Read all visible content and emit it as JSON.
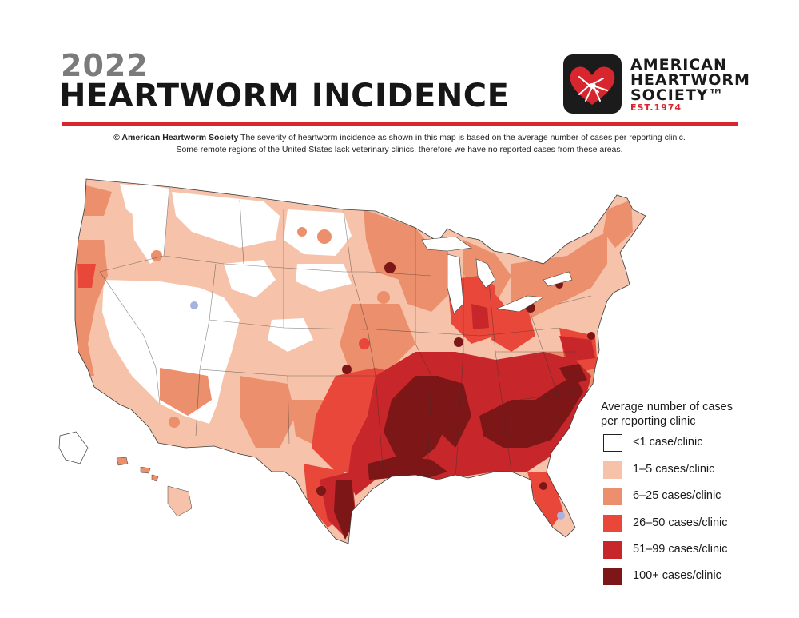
{
  "header": {
    "year": "2022",
    "title": "HEARTWORM INCIDENCE"
  },
  "logo": {
    "line1": "AMERICAN",
    "line2": "HEARTWORM",
    "line3": "SOCIETY™",
    "est": "EST.1974",
    "icon": "heart-mosquito-icon",
    "colors": {
      "box": "#1b1b1b",
      "heart": "#d8262e"
    }
  },
  "notes": {
    "credit": "© American Heartworm Society",
    "line1_rest": " The severity of heartworm incidence as shown in this map is based on the average number of cases per reporting clinic.",
    "line2": "Some remote regions of the United States lack veterinary clinics, therefore we have no reported cases from these areas."
  },
  "legend": {
    "title_line1": "Average number of cases",
    "title_line2": "per reporting clinic",
    "items": [
      {
        "label": "<1 case/clinic",
        "color": "#ffffff"
      },
      {
        "label": "1–5 cases/clinic",
        "color": "#f6c3aa"
      },
      {
        "label": "6–25 cases/clinic",
        "color": "#ec8f6d"
      },
      {
        "label": "26–50 cases/clinic",
        "color": "#e9473a"
      },
      {
        "label": "51–99 cases/clinic",
        "color": "#c7262b"
      },
      {
        "label": "100+ cases/clinic",
        "color": "#7d1616"
      }
    ]
  },
  "colors": {
    "rule": "#d8262e",
    "no_data": "#a7b2e0"
  }
}
